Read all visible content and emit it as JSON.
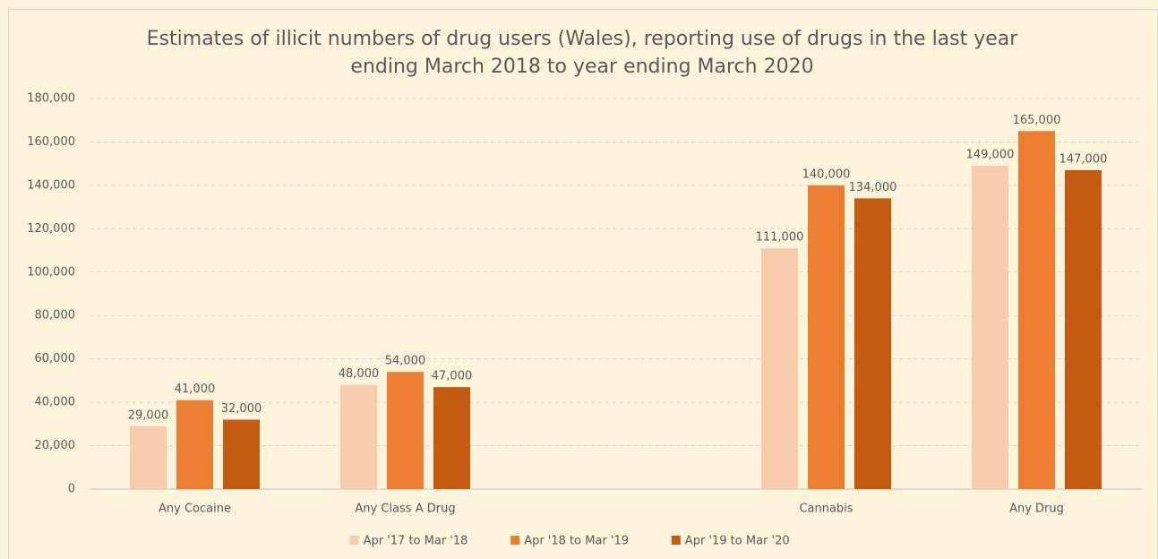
{
  "chart_data": {
    "type": "bar",
    "title": "Estimates of illicit numbers of drug users (Wales), reporting use of drugs in the last year ending March 2018 to year ending March 2020",
    "categories": [
      "Any Cocaine",
      "Any Class A Drug",
      null,
      "Cannabis",
      "Any Drug"
    ],
    "series": [
      {
        "name": "Apr '17 to Mar '18",
        "color": "#f8cbad",
        "values": [
          29000,
          48000,
          null,
          111000,
          149000
        ],
        "value_labels": [
          "29,000",
          "48,000",
          null,
          "111,000",
          "149,000"
        ]
      },
      {
        "name": "Apr '18 to Mar '19",
        "color": "#ed7d31",
        "values": [
          41000,
          54000,
          null,
          140000,
          165000
        ],
        "value_labels": [
          "41,000",
          "54,000",
          null,
          "140,000",
          "165,000"
        ]
      },
      {
        "name": "Apr '19 to Mar '20",
        "color": "#c55a11",
        "values": [
          32000,
          47000,
          null,
          134000,
          147000
        ],
        "value_labels": [
          "32,000",
          "47,000",
          null,
          "134,000",
          "147,000"
        ]
      }
    ],
    "ylim": [
      0,
      180000
    ],
    "yticks": [
      0,
      {
        "value": 20000,
        "label": "20,000"
      },
      {
        "value": 40000,
        "label": "40,000"
      },
      {
        "value": 60000,
        "label": "60,000"
      },
      {
        "value": 80000,
        "label": "80,000"
      },
      {
        "value": 100000,
        "label": "100,000"
      },
      {
        "value": 120000,
        "label": "120,000"
      },
      {
        "value": 140000,
        "label": "140,000"
      },
      {
        "value": 160000,
        "label": "160,000"
      },
      {
        "value": 180000,
        "label": "180,000"
      }
    ],
    "grid": true,
    "legend": "bottom"
  }
}
